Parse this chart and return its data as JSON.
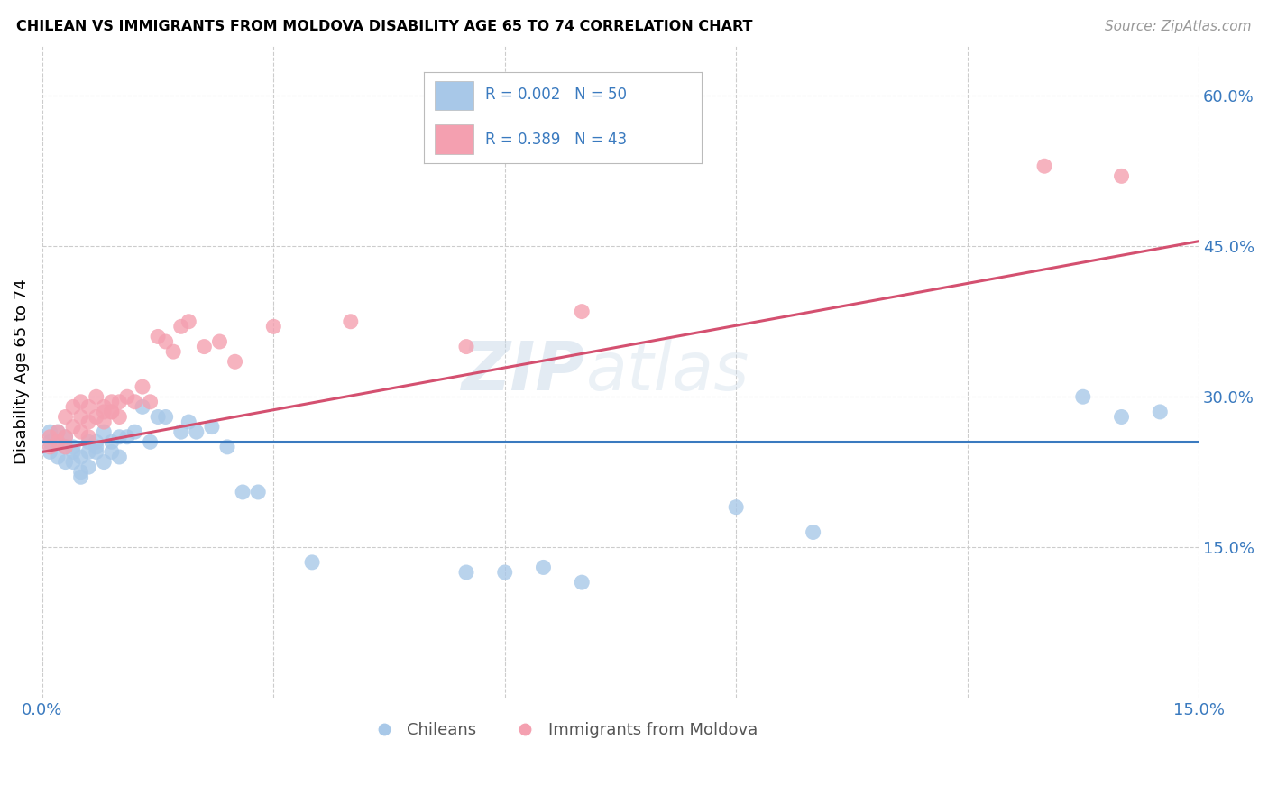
{
  "title": "CHILEAN VS IMMIGRANTS FROM MOLDOVA DISABILITY AGE 65 TO 74 CORRELATION CHART",
  "source": "Source: ZipAtlas.com",
  "ylabel": "Disability Age 65 to 74",
  "xlim": [
    0.0,
    0.15
  ],
  "ylim": [
    0.0,
    0.65
  ],
  "xtick_vals": [
    0.0,
    0.03,
    0.06,
    0.09,
    0.12,
    0.15
  ],
  "xtick_labels": [
    "0.0%",
    "",
    "",
    "",
    "",
    "15.0%"
  ],
  "ytick_values_right": [
    0.15,
    0.3,
    0.45,
    0.6
  ],
  "legend_color1": "#a8c8e8",
  "legend_color2": "#f4a0b0",
  "line_color1": "#3a7abf",
  "line_color2": "#d45070",
  "background_color": "#ffffff",
  "grid_color": "#cccccc",
  "watermark": "ZIPatlas",
  "chileans_x": [
    0.001,
    0.001,
    0.001,
    0.002,
    0.002,
    0.002,
    0.003,
    0.003,
    0.003,
    0.004,
    0.004,
    0.004,
    0.005,
    0.005,
    0.005,
    0.006,
    0.006,
    0.006,
    0.007,
    0.007,
    0.007,
    0.008,
    0.008,
    0.009,
    0.009,
    0.01,
    0.01,
    0.011,
    0.012,
    0.013,
    0.014,
    0.015,
    0.016,
    0.018,
    0.019,
    0.02,
    0.022,
    0.024,
    0.026,
    0.028,
    0.035,
    0.055,
    0.06,
    0.065,
    0.07,
    0.09,
    0.1,
    0.135,
    0.14,
    0.145
  ],
  "chileans_y": [
    0.255,
    0.265,
    0.245,
    0.265,
    0.255,
    0.24,
    0.26,
    0.25,
    0.235,
    0.25,
    0.235,
    0.245,
    0.24,
    0.225,
    0.22,
    0.245,
    0.255,
    0.23,
    0.255,
    0.245,
    0.25,
    0.265,
    0.235,
    0.255,
    0.245,
    0.26,
    0.24,
    0.26,
    0.265,
    0.29,
    0.255,
    0.28,
    0.28,
    0.265,
    0.275,
    0.265,
    0.27,
    0.25,
    0.205,
    0.205,
    0.135,
    0.125,
    0.125,
    0.13,
    0.115,
    0.19,
    0.165,
    0.3,
    0.28,
    0.285
  ],
  "moldova_x": [
    0.001,
    0.001,
    0.002,
    0.002,
    0.003,
    0.003,
    0.003,
    0.004,
    0.004,
    0.005,
    0.005,
    0.005,
    0.006,
    0.006,
    0.006,
    0.007,
    0.007,
    0.008,
    0.008,
    0.008,
    0.009,
    0.009,
    0.009,
    0.01,
    0.01,
    0.011,
    0.012,
    0.013,
    0.014,
    0.015,
    0.016,
    0.017,
    0.018,
    0.019,
    0.021,
    0.023,
    0.025,
    0.03,
    0.04,
    0.055,
    0.07,
    0.13,
    0.14
  ],
  "moldova_y": [
    0.25,
    0.26,
    0.265,
    0.255,
    0.26,
    0.25,
    0.28,
    0.27,
    0.29,
    0.265,
    0.28,
    0.295,
    0.275,
    0.26,
    0.29,
    0.28,
    0.3,
    0.29,
    0.285,
    0.275,
    0.285,
    0.295,
    0.285,
    0.28,
    0.295,
    0.3,
    0.295,
    0.31,
    0.295,
    0.36,
    0.355,
    0.345,
    0.37,
    0.375,
    0.35,
    0.355,
    0.335,
    0.37,
    0.375,
    0.35,
    0.385,
    0.53,
    0.52
  ],
  "chilean_line_x": [
    0.0,
    0.15
  ],
  "chilean_line_y": [
    0.255,
    0.255
  ],
  "moldova_line_x": [
    0.0,
    0.15
  ],
  "moldova_line_y": [
    0.245,
    0.455
  ]
}
